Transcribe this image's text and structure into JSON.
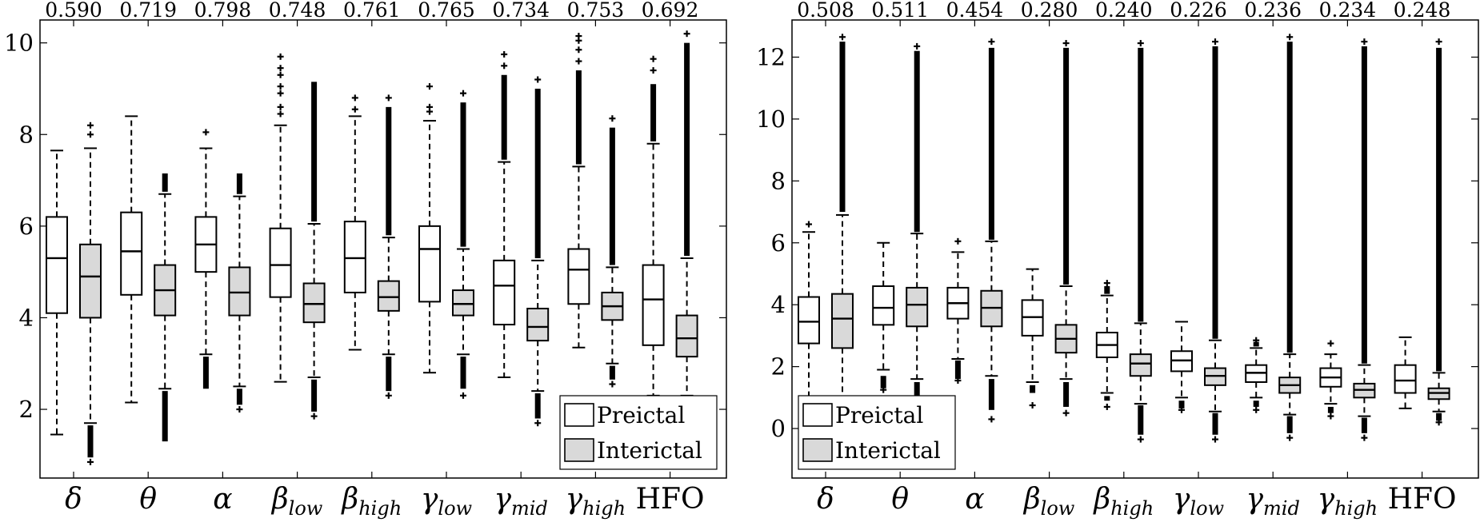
{
  "chart_data": [
    {
      "type": "box",
      "panel": "left",
      "categories": [
        "δ",
        "θ",
        "α",
        "β_low",
        "β_high",
        "γ_low",
        "γ_mid",
        "γ_high",
        "HFO"
      ],
      "category_labels": [
        {
          "base": "δ",
          "sub": ""
        },
        {
          "base": "θ",
          "sub": ""
        },
        {
          "base": "α",
          "sub": ""
        },
        {
          "base": "β",
          "sub": "low"
        },
        {
          "base": "β",
          "sub": "high"
        },
        {
          "base": "γ",
          "sub": "low"
        },
        {
          "base": "γ",
          "sub": "mid"
        },
        {
          "base": "γ",
          "sub": "high"
        },
        {
          "base": "HFO",
          "sub": ""
        }
      ],
      "top_values": [
        "0.590",
        "0.719",
        "0.798",
        "0.748",
        "0.761",
        "0.765",
        "0.734",
        "0.753",
        "0.692"
      ],
      "ylim": [
        0.5,
        10.5
      ],
      "yticks": [
        2,
        4,
        6,
        8,
        10
      ],
      "legend": {
        "position": "bottom-right",
        "entries": [
          "Preictal",
          "Interictal"
        ]
      },
      "series": [
        {
          "name": "Preictal",
          "fill": "#ffffff",
          "boxes": [
            {
              "min": 1.45,
              "q1": 4.1,
              "median": 5.3,
              "q3": 6.2,
              "max": 7.65,
              "outliers_high": [],
              "outliers_low": [],
              "band_high": null,
              "band_low": null
            },
            {
              "min": 2.15,
              "q1": 4.5,
              "median": 5.45,
              "q3": 6.3,
              "max": 8.4,
              "outliers_high": [],
              "outliers_low": [],
              "band_high": null,
              "band_low": null
            },
            {
              "min": 3.2,
              "q1": 5.0,
              "median": 5.6,
              "q3": 6.2,
              "max": 7.7,
              "outliers_high": [
                8.05
              ],
              "outliers_low": [],
              "band_high": null,
              "band_low": [
                2.45,
                3.15
              ]
            },
            {
              "min": 2.6,
              "q1": 4.45,
              "median": 5.15,
              "q3": 5.95,
              "max": 8.2,
              "outliers_high": [
                8.45,
                8.6,
                8.9,
                9.05,
                9.3,
                9.45,
                9.7
              ],
              "outliers_low": [],
              "band_high": null,
              "band_low": null
            },
            {
              "min": 3.3,
              "q1": 4.55,
              "median": 5.3,
              "q3": 6.1,
              "max": 8.4,
              "outliers_high": [
                8.55,
                8.8
              ],
              "outliers_low": [],
              "band_high": null,
              "band_low": null
            },
            {
              "min": 2.8,
              "q1": 4.35,
              "median": 5.5,
              "q3": 6.0,
              "max": 8.3,
              "outliers_high": [
                8.5,
                8.6,
                9.05
              ],
              "outliers_low": [],
              "band_high": null,
              "band_low": null
            },
            {
              "min": 2.7,
              "q1": 3.85,
              "median": 4.7,
              "q3": 5.25,
              "max": 7.4,
              "outliers_high": [
                9.5,
                9.75
              ],
              "outliers_low": [],
              "band_high": [
                7.45,
                9.3
              ],
              "band_low": null
            },
            {
              "min": 3.35,
              "q1": 4.3,
              "median": 5.05,
              "q3": 5.5,
              "max": 7.3,
              "outliers_high": [
                9.6,
                9.85,
                10.05,
                10.15
              ],
              "outliers_low": [],
              "band_high": [
                7.35,
                9.4
              ],
              "band_low": null
            },
            {
              "min": 2.3,
              "q1": 3.4,
              "median": 4.4,
              "q3": 5.15,
              "max": 7.8,
              "outliers_high": [
                9.4,
                9.65
              ],
              "outliers_low": [],
              "band_high": [
                7.85,
                9.1
              ],
              "band_low": null
            }
          ]
        },
        {
          "name": "Interictal",
          "fill": "#d9d9d9",
          "boxes": [
            {
              "min": 1.7,
              "q1": 4.0,
              "median": 4.9,
              "q3": 5.6,
              "max": 7.7,
              "outliers_high": [
                8.0,
                8.2
              ],
              "outliers_low": [
                0.85
              ],
              "band_high": null,
              "band_low": [
                0.95,
                1.65
              ]
            },
            {
              "min": 2.45,
              "q1": 4.05,
              "median": 4.6,
              "q3": 5.15,
              "max": 6.7,
              "outliers_high": [],
              "outliers_low": [],
              "band_high": [
                6.75,
                7.15
              ],
              "band_low": [
                1.3,
                2.4
              ]
            },
            {
              "min": 2.5,
              "q1": 4.05,
              "median": 4.55,
              "q3": 5.1,
              "max": 6.65,
              "outliers_high": [],
              "outliers_low": [
                2.0
              ],
              "band_high": [
                6.7,
                7.15
              ],
              "band_low": [
                2.1,
                2.45
              ]
            },
            {
              "min": 2.7,
              "q1": 3.9,
              "median": 4.3,
              "q3": 4.75,
              "max": 6.05,
              "outliers_high": [],
              "outliers_low": [
                1.85
              ],
              "band_high": [
                6.1,
                9.15
              ],
              "band_low": [
                1.95,
                2.65
              ]
            },
            {
              "min": 3.2,
              "q1": 4.15,
              "median": 4.45,
              "q3": 4.8,
              "max": 5.75,
              "outliers_high": [
                8.8
              ],
              "outliers_low": [
                2.3
              ],
              "band_high": [
                5.8,
                8.6
              ],
              "band_low": [
                2.4,
                3.15
              ]
            },
            {
              "min": 3.2,
              "q1": 4.05,
              "median": 4.3,
              "q3": 4.6,
              "max": 5.5,
              "outliers_high": [
                8.9
              ],
              "outliers_low": [
                2.3
              ],
              "band_high": [
                5.55,
                8.7
              ],
              "band_low": [
                2.45,
                3.15
              ]
            },
            {
              "min": 2.4,
              "q1": 3.5,
              "median": 3.8,
              "q3": 4.2,
              "max": 5.25,
              "outliers_high": [
                9.2
              ],
              "outliers_low": [
                1.7
              ],
              "band_high": [
                5.3,
                9.0
              ],
              "band_low": [
                1.8,
                2.35
              ]
            },
            {
              "min": 3.0,
              "q1": 3.95,
              "median": 4.25,
              "q3": 4.55,
              "max": 5.1,
              "outliers_high": [
                8.35
              ],
              "outliers_low": [
                2.55
              ],
              "band_high": [
                5.15,
                8.15
              ],
              "band_low": [
                2.65,
                2.95
              ]
            },
            {
              "min": 2.3,
              "q1": 3.15,
              "median": 3.55,
              "q3": 4.05,
              "max": 5.3,
              "outliers_high": [
                10.2
              ],
              "outliers_low": [],
              "band_high": [
                5.35,
                10.0
              ],
              "band_low": null
            }
          ]
        }
      ]
    },
    {
      "type": "box",
      "panel": "right",
      "categories": [
        "δ",
        "θ",
        "α",
        "β_low",
        "β_high",
        "γ_low",
        "γ_mid",
        "γ_high",
        "HFO"
      ],
      "category_labels": [
        {
          "base": "δ",
          "sub": ""
        },
        {
          "base": "θ",
          "sub": ""
        },
        {
          "base": "α",
          "sub": ""
        },
        {
          "base": "β",
          "sub": "low"
        },
        {
          "base": "β",
          "sub": "high"
        },
        {
          "base": "γ",
          "sub": "low"
        },
        {
          "base": "γ",
          "sub": "mid"
        },
        {
          "base": "γ",
          "sub": "high"
        },
        {
          "base": "HFO",
          "sub": ""
        }
      ],
      "top_values": [
        "0.508",
        "0.511",
        "0.454",
        "0.280",
        "0.240",
        "0.226",
        "0.236",
        "0.234",
        "0.248"
      ],
      "ylim": [
        -1.6,
        13.2
      ],
      "yticks": [
        0,
        2,
        4,
        6,
        8,
        10,
        12
      ],
      "legend": {
        "position": "bottom-left",
        "entries": [
          "Preictal",
          "Interictal"
        ]
      },
      "series": [
        {
          "name": "Preictal",
          "fill": "#ffffff",
          "boxes": [
            {
              "min": 0.7,
              "q1": 2.75,
              "median": 3.45,
              "q3": 4.25,
              "max": 6.35,
              "outliers_high": [
                6.6
              ],
              "outliers_low": [],
              "band_high": null,
              "band_low": null
            },
            {
              "min": 1.9,
              "q1": 3.35,
              "median": 3.9,
              "q3": 4.6,
              "max": 6.0,
              "outliers_high": [],
              "outliers_low": [
                1.25
              ],
              "band_high": null,
              "band_low": [
                1.3,
                1.7
              ]
            },
            {
              "min": 2.25,
              "q1": 3.55,
              "median": 4.05,
              "q3": 4.55,
              "max": 5.7,
              "outliers_high": [
                6.05
              ],
              "outliers_low": [
                1.55
              ],
              "band_high": null,
              "band_low": [
                1.6,
                2.2
              ]
            },
            {
              "min": 1.5,
              "q1": 3.0,
              "median": 3.6,
              "q3": 4.15,
              "max": 5.15,
              "outliers_high": [],
              "outliers_low": [
                0.75
              ],
              "band_high": null,
              "band_low": [
                1.15,
                1.4
              ]
            },
            {
              "min": 1.15,
              "q1": 2.3,
              "median": 2.7,
              "q3": 3.1,
              "max": 4.3,
              "outliers_high": [
                4.7
              ],
              "outliers_low": [
                0.7
              ],
              "band_high": [
                4.35,
                4.6
              ],
              "band_low": [
                0.9,
                1.05
              ]
            },
            {
              "min": 1.0,
              "q1": 1.85,
              "median": 2.2,
              "q3": 2.5,
              "max": 3.45,
              "outliers_high": [],
              "outliers_low": [
                0.6
              ],
              "band_high": null,
              "band_low": [
                0.65,
                0.9
              ]
            },
            {
              "min": 1.0,
              "q1": 1.5,
              "median": 1.8,
              "q3": 2.05,
              "max": 2.6,
              "outliers_high": [
                2.85
              ],
              "outliers_low": [
                0.6
              ],
              "band_high": [
                2.65,
                2.8
              ],
              "band_low": [
                0.7,
                0.9
              ]
            },
            {
              "min": 0.8,
              "q1": 1.35,
              "median": 1.65,
              "q3": 1.95,
              "max": 2.4,
              "outliers_high": [
                2.75
              ],
              "outliers_low": [
                0.4
              ],
              "band_high": null,
              "band_low": [
                0.5,
                0.7
              ]
            },
            {
              "min": 0.65,
              "q1": 1.15,
              "median": 1.55,
              "q3": 2.05,
              "max": 2.95,
              "outliers_high": [],
              "outliers_low": [],
              "band_high": null,
              "band_low": null
            }
          ]
        },
        {
          "name": "Interictal",
          "fill": "#d9d9d9",
          "boxes": [
            {
              "min": 0.9,
              "q1": 2.6,
              "median": 3.55,
              "q3": 4.35,
              "max": 6.9,
              "outliers_high": [
                12.65
              ],
              "outliers_low": [],
              "band_high": [
                7.0,
                12.5
              ],
              "band_low": null
            },
            {
              "min": 1.6,
              "q1": 3.3,
              "median": 4.0,
              "q3": 4.55,
              "max": 6.3,
              "outliers_high": [
                12.35
              ],
              "outliers_low": [
                0.95
              ],
              "band_high": [
                6.35,
                12.2
              ],
              "band_low": [
                1.0,
                1.5
              ]
            },
            {
              "min": 1.7,
              "q1": 3.3,
              "median": 3.9,
              "q3": 4.45,
              "max": 6.05,
              "outliers_high": [
                12.5
              ],
              "outliers_low": [
                0.3
              ],
              "band_high": [
                6.1,
                12.3
              ],
              "band_low": [
                0.6,
                1.6
              ]
            },
            {
              "min": 1.6,
              "q1": 2.45,
              "median": 2.9,
              "q3": 3.35,
              "max": 4.6,
              "outliers_high": [
                12.45
              ],
              "outliers_low": [
                0.5
              ],
              "band_high": [
                4.65,
                12.3
              ],
              "band_low": [
                0.7,
                1.5
              ]
            },
            {
              "min": 0.8,
              "q1": 1.7,
              "median": 2.1,
              "q3": 2.4,
              "max": 3.4,
              "outliers_high": [
                12.45
              ],
              "outliers_low": [
                -0.35
              ],
              "band_high": [
                3.45,
                12.3
              ],
              "band_low": [
                -0.2,
                0.75
              ]
            },
            {
              "min": 0.55,
              "q1": 1.4,
              "median": 1.7,
              "q3": 1.95,
              "max": 2.85,
              "outliers_high": [
                12.5
              ],
              "outliers_low": [
                -0.35
              ],
              "band_high": [
                2.9,
                12.35
              ],
              "band_low": [
                -0.2,
                0.5
              ]
            },
            {
              "min": 0.45,
              "q1": 1.15,
              "median": 1.4,
              "q3": 1.65,
              "max": 2.4,
              "outliers_high": [
                12.65
              ],
              "outliers_low": [
                -0.3
              ],
              "band_high": [
                2.45,
                12.5
              ],
              "band_low": [
                -0.15,
                0.4
              ]
            },
            {
              "min": 0.4,
              "q1": 1.0,
              "median": 1.25,
              "q3": 1.45,
              "max": 2.05,
              "outliers_high": [
                12.5
              ],
              "outliers_low": [
                -0.3
              ],
              "band_high": [
                2.1,
                12.35
              ],
              "band_low": [
                -0.15,
                0.35
              ]
            },
            {
              "min": 0.55,
              "q1": 0.95,
              "median": 1.15,
              "q3": 1.3,
              "max": 1.8,
              "outliers_high": [
                12.5
              ],
              "outliers_low": [
                0.2
              ],
              "band_high": [
                1.85,
                12.3
              ],
              "band_low": [
                0.25,
                0.5
              ]
            }
          ]
        }
      ]
    }
  ]
}
